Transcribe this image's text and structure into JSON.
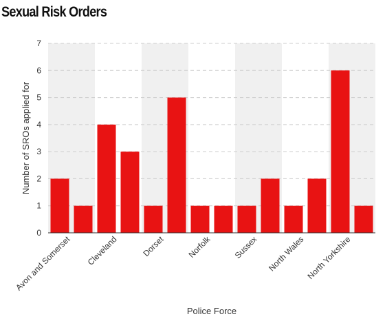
{
  "chart_data": {
    "type": "bar",
    "title": "Sexual Risk Orders",
    "xlabel": "Police Force",
    "ylabel": "Number of SROs applied for",
    "ylim": [
      0,
      7
    ],
    "yticks": [
      0,
      1,
      2,
      3,
      4,
      5,
      6,
      7
    ],
    "grid": true,
    "alternating_bands": true,
    "bar_color": "#e81313",
    "band_color": "#f0f0f0",
    "categories": [
      "Avon and Somerset",
      "",
      "Cleveland",
      "",
      "Dorset",
      "",
      "Norfolk",
      "",
      "Sussex",
      "",
      "North Wales",
      "",
      "North Yorkshire",
      ""
    ],
    "tick_labels": [
      "Avon and Somerset",
      "Cleveland",
      "Dorset",
      "Norfolk",
      "Sussex",
      "North Wales",
      "North Yorkshire"
    ],
    "values": [
      2,
      1,
      4,
      3,
      1,
      5,
      1,
      1,
      1,
      2,
      1,
      2,
      6,
      1
    ]
  }
}
